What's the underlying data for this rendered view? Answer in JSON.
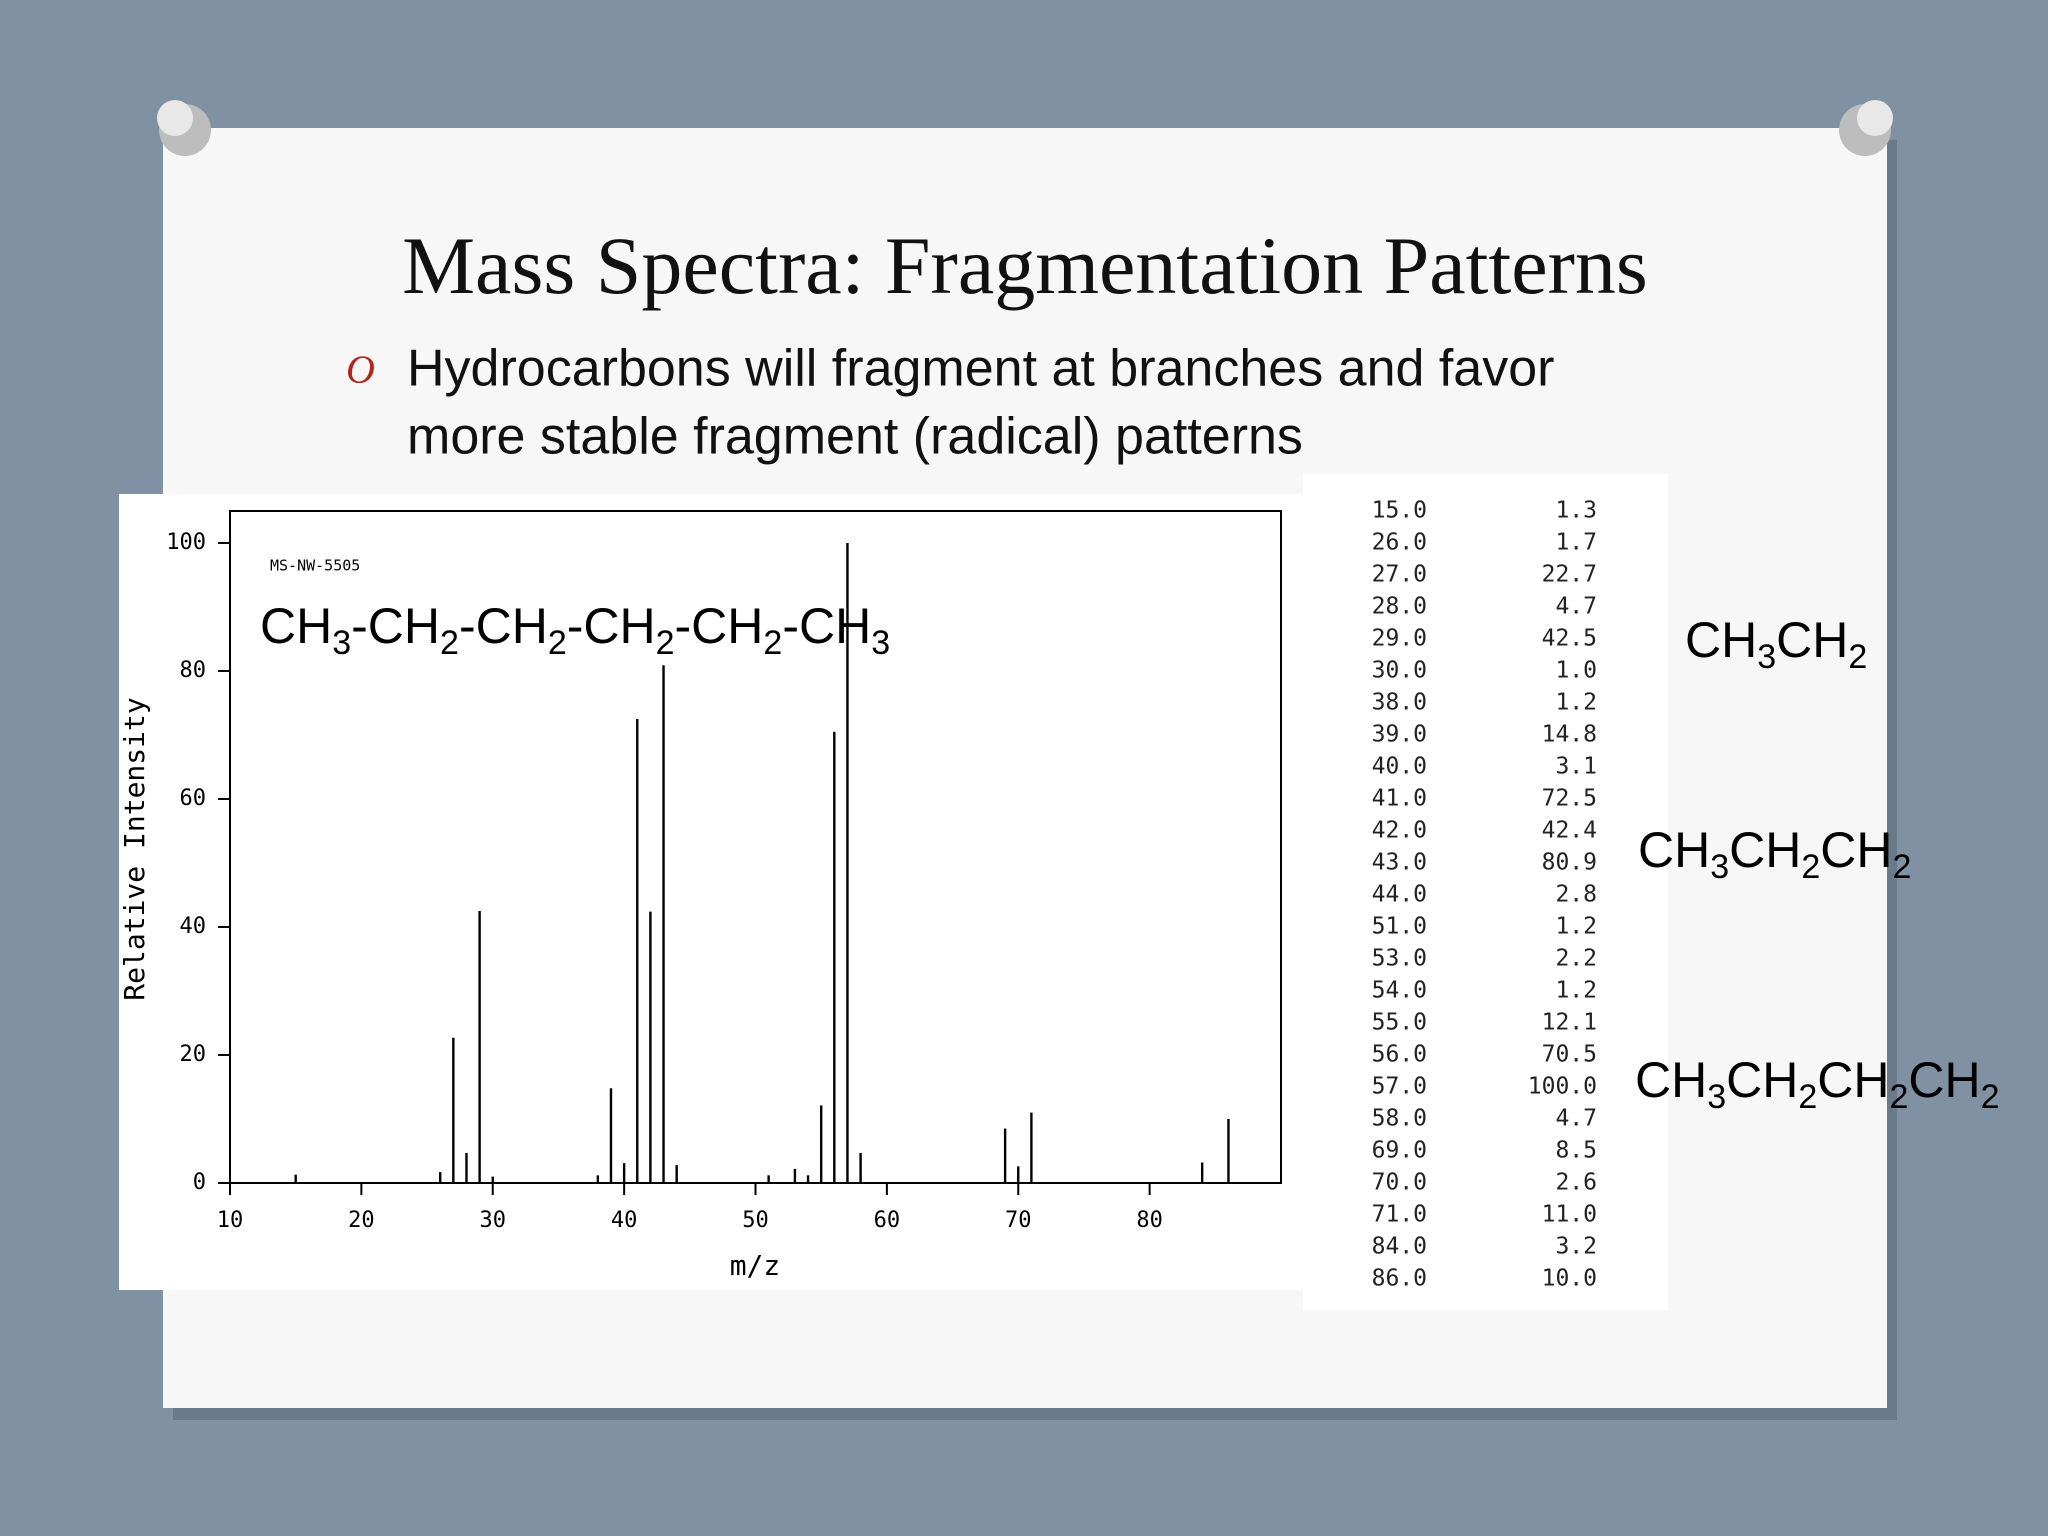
{
  "slide": {
    "title": "Mass Spectra: Fragmentation Patterns",
    "bullet": [
      "Hydrocarbons will fragment at branches and favor",
      "more stable fragment (radical) patterns"
    ],
    "annotations": [
      "CH3CH2",
      "CH3CH2CH2",
      "CH3CH2CH2CH2"
    ]
  },
  "chart_data": {
    "type": "bar",
    "id_label": "MS-NW-5505",
    "formula": "CH3-CH2-CH2-CH2-CH2-CH3",
    "x_label": "m/z",
    "y_label": "Relative Intensity",
    "color": "#000000",
    "x": [
      15,
      26,
      27,
      28,
      29,
      30,
      38,
      39,
      40,
      41,
      42,
      43,
      44,
      51,
      53,
      54,
      55,
      56,
      57,
      58,
      69,
      70,
      71,
      84,
      86
    ],
    "values": [
      1.3,
      1.7,
      22.7,
      4.7,
      42.5,
      1.0,
      1.2,
      14.8,
      3.1,
      72.5,
      42.4,
      80.9,
      2.8,
      1.2,
      2.2,
      1.2,
      12.1,
      70.5,
      100.0,
      4.7,
      8.5,
      2.6,
      11.0,
      3.2,
      10.0
    ],
    "xlim": [
      10,
      90
    ],
    "ylim": [
      0,
      105
    ],
    "xticks": [
      10,
      20,
      30,
      40,
      50,
      60,
      70,
      80
    ],
    "yticks": [
      0,
      20,
      40,
      60,
      80,
      100
    ]
  },
  "table": {
    "rows": [
      [
        "15.0",
        "1.3"
      ],
      [
        "26.0",
        "1.7"
      ],
      [
        "27.0",
        "22.7"
      ],
      [
        "28.0",
        "4.7"
      ],
      [
        "29.0",
        "42.5"
      ],
      [
        "30.0",
        "1.0"
      ],
      [
        "38.0",
        "1.2"
      ],
      [
        "39.0",
        "14.8"
      ],
      [
        "40.0",
        "3.1"
      ],
      [
        "41.0",
        "72.5"
      ],
      [
        "42.0",
        "42.4"
      ],
      [
        "43.0",
        "80.9"
      ],
      [
        "44.0",
        "2.8"
      ],
      [
        "51.0",
        "1.2"
      ],
      [
        "53.0",
        "2.2"
      ],
      [
        "54.0",
        "1.2"
      ],
      [
        "55.0",
        "12.1"
      ],
      [
        "56.0",
        "70.5"
      ],
      [
        "57.0",
        "100.0"
      ],
      [
        "58.0",
        "4.7"
      ],
      [
        "69.0",
        "8.5"
      ],
      [
        "70.0",
        "2.6"
      ],
      [
        "71.0",
        "11.0"
      ],
      [
        "84.0",
        "3.2"
      ],
      [
        "86.0",
        "10.0"
      ]
    ]
  }
}
